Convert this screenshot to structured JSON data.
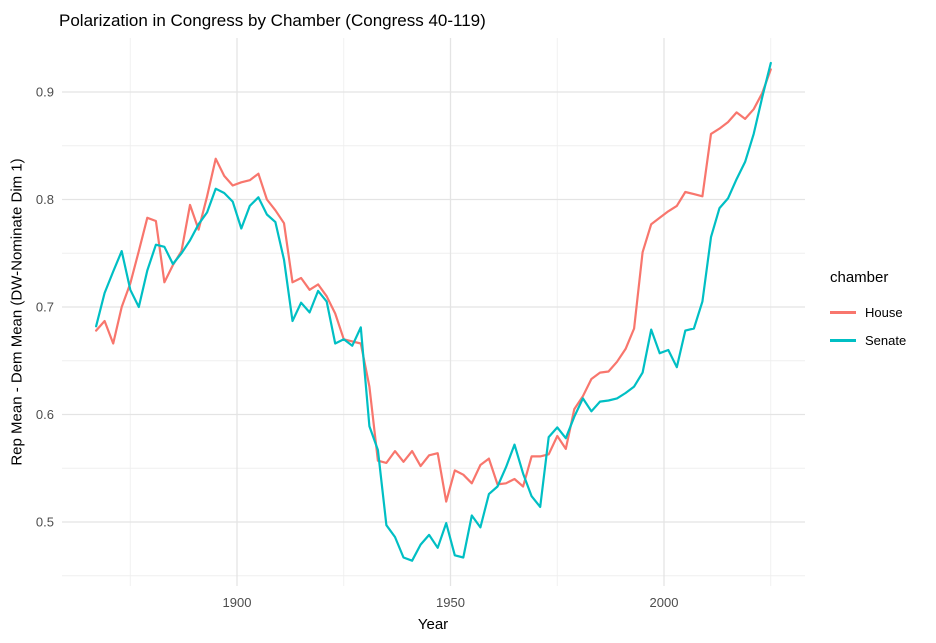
{
  "page": {
    "background": "#ffffff"
  },
  "chart": {
    "title": "Polarization in Congress by Chamber (Congress 40-119)",
    "xlabel": "Year",
    "ylabel": "Rep Mean - Dem Mean (DW-Nominate Dim 1)"
  },
  "legend": {
    "title": "chamber",
    "entries": [
      {
        "label": "House",
        "color": "#F8766D"
      },
      {
        "label": "Senate",
        "color": "#00BFC4"
      }
    ]
  },
  "colors": {
    "house": "#F8766D",
    "senate": "#00BFC4",
    "grid_major": "#E4E4E4",
    "grid_minor": "#EFEFEF",
    "tick_text": "#4D4D4D",
    "background": "#FFFFFF"
  },
  "chart_data": {
    "type": "line",
    "title": "Polarization in Congress by Chamber (Congress 40-119)",
    "xlabel": "Year",
    "ylabel": "Rep Mean - Dem Mean (DW-Nominate Dim 1)",
    "grid": true,
    "legend_position": "right",
    "xlim": [
      1859,
      2033
    ],
    "ylim": [
      0.441,
      0.95
    ],
    "x_ticks": [
      "1900",
      "1950",
      "2000"
    ],
    "x_tick_years": [
      1900,
      1950,
      2000
    ],
    "x_minor_years": [
      1875,
      1925,
      1975,
      2025
    ],
    "y_ticks": [
      "0.5",
      "0.6",
      "0.7",
      "0.8",
      "0.9"
    ],
    "y_tick_values": [
      0.5,
      0.6,
      0.7,
      0.8,
      0.9
    ],
    "y_minor_values": [
      0.45,
      0.55,
      0.65,
      0.75,
      0.85
    ],
    "x": [
      1867,
      1869,
      1871,
      1873,
      1875,
      1877,
      1879,
      1881,
      1883,
      1885,
      1887,
      1889,
      1891,
      1893,
      1895,
      1897,
      1899,
      1901,
      1903,
      1905,
      1907,
      1909,
      1911,
      1913,
      1915,
      1917,
      1919,
      1921,
      1923,
      1925,
      1927,
      1929,
      1931,
      1933,
      1935,
      1937,
      1939,
      1941,
      1943,
      1945,
      1947,
      1949,
      1951,
      1953,
      1955,
      1957,
      1959,
      1961,
      1963,
      1965,
      1967,
      1969,
      1971,
      1973,
      1975,
      1977,
      1979,
      1981,
      1983,
      1985,
      1987,
      1989,
      1991,
      1993,
      1995,
      1997,
      1999,
      2001,
      2003,
      2005,
      2007,
      2009,
      2011,
      2013,
      2015,
      2017,
      2019,
      2021,
      2023,
      2025
    ],
    "series": [
      {
        "name": "House",
        "color": "#F8766D",
        "values": [
          0.678,
          0.687,
          0.666,
          0.7,
          0.722,
          0.752,
          0.783,
          0.78,
          0.723,
          0.739,
          0.752,
          0.795,
          0.772,
          0.803,
          0.838,
          0.822,
          0.813,
          0.816,
          0.818,
          0.824,
          0.8,
          0.79,
          0.778,
          0.723,
          0.727,
          0.716,
          0.721,
          0.71,
          0.694,
          0.67,
          0.668,
          0.666,
          0.626,
          0.557,
          0.555,
          0.566,
          0.556,
          0.566,
          0.552,
          0.562,
          0.564,
          0.519,
          0.548,
          0.544,
          0.536,
          0.553,
          0.559,
          0.535,
          0.536,
          0.54,
          0.533,
          0.561,
          0.561,
          0.563,
          0.58,
          0.568,
          0.605,
          0.617,
          0.633,
          0.639,
          0.64,
          0.649,
          0.661,
          0.68,
          0.751,
          0.777,
          0.783,
          0.789,
          0.794,
          0.807,
          0.805,
          0.803,
          0.861,
          0.866,
          0.872,
          0.881,
          0.875,
          0.884,
          0.899,
          0.921
        ]
      },
      {
        "name": "Senate",
        "color": "#00BFC4",
        "values": [
          0.682,
          0.713,
          0.733,
          0.752,
          0.716,
          0.7,
          0.734,
          0.758,
          0.756,
          0.74,
          0.75,
          0.762,
          0.777,
          0.788,
          0.81,
          0.806,
          0.798,
          0.773,
          0.794,
          0.802,
          0.786,
          0.779,
          0.744,
          0.687,
          0.704,
          0.695,
          0.715,
          0.705,
          0.666,
          0.67,
          0.664,
          0.681,
          0.589,
          0.567,
          0.497,
          0.486,
          0.467,
          0.464,
          0.479,
          0.488,
          0.476,
          0.499,
          0.469,
          0.467,
          0.506,
          0.495,
          0.526,
          0.533,
          0.551,
          0.572,
          0.545,
          0.524,
          0.514,
          0.579,
          0.588,
          0.578,
          0.598,
          0.615,
          0.603,
          0.612,
          0.613,
          0.615,
          0.62,
          0.626,
          0.639,
          0.679,
          0.657,
          0.66,
          0.644,
          0.678,
          0.68,
          0.705,
          0.765,
          0.792,
          0.801,
          0.819,
          0.835,
          0.861,
          0.895,
          0.927
        ]
      }
    ]
  }
}
